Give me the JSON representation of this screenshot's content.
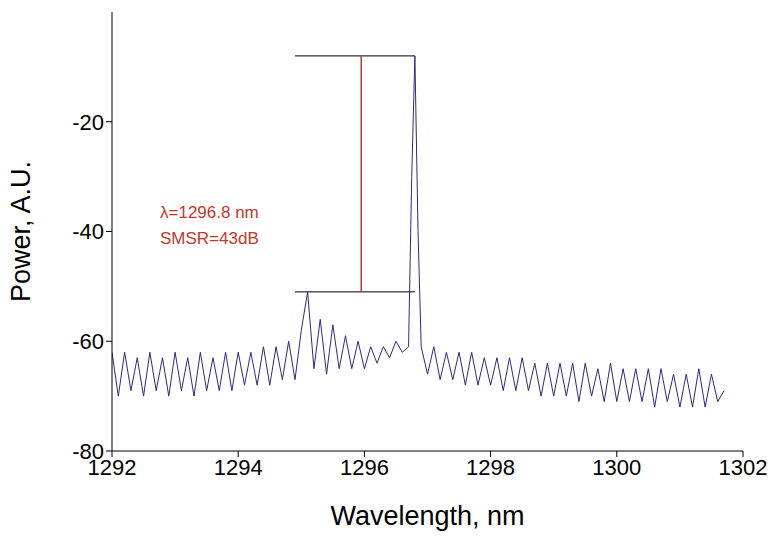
{
  "chart_data": {
    "type": "line",
    "x_label": "Wavelength, nm",
    "y_label": "Power, A.U.",
    "annotations": [
      "λ=1296.8 nm",
      "SMSR=43dB"
    ],
    "x": [
      1292.0,
      1292.1,
      1292.2,
      1292.3,
      1292.4,
      1292.5,
      1292.6,
      1292.7,
      1292.8,
      1292.9,
      1293.0,
      1293.1,
      1293.2,
      1293.3,
      1293.4,
      1293.5,
      1293.6,
      1293.7,
      1293.8,
      1293.9,
      1294.0,
      1294.1,
      1294.2,
      1294.3,
      1294.4,
      1294.5,
      1294.6,
      1294.7,
      1294.8,
      1294.9,
      1295.0,
      1295.1,
      1295.2,
      1295.3,
      1295.4,
      1295.5,
      1295.6,
      1295.7,
      1295.8,
      1295.9,
      1296.0,
      1296.1,
      1296.2,
      1296.3,
      1296.4,
      1296.5,
      1296.6,
      1296.7,
      1296.75,
      1296.8,
      1296.85,
      1296.9,
      1297.0,
      1297.1,
      1297.2,
      1297.3,
      1297.4,
      1297.5,
      1297.6,
      1297.7,
      1297.8,
      1297.9,
      1298.0,
      1298.1,
      1298.2,
      1298.3,
      1298.4,
      1298.5,
      1298.6,
      1298.7,
      1298.8,
      1298.9,
      1299.0,
      1299.1,
      1299.2,
      1299.3,
      1299.4,
      1299.5,
      1299.6,
      1299.7,
      1299.8,
      1299.9,
      1300.0,
      1300.1,
      1300.2,
      1300.3,
      1300.4,
      1300.5,
      1300.6,
      1300.7,
      1300.8,
      1300.9,
      1301.0,
      1301.1,
      1301.2,
      1301.3,
      1301.4,
      1301.5,
      1301.6,
      1301.7
    ],
    "values": [
      -62,
      -70,
      -62,
      -69,
      -63,
      -70,
      -62,
      -69,
      -63,
      -70,
      -62,
      -69,
      -63,
      -70,
      -62,
      -69,
      -63,
      -69,
      -62,
      -69,
      -62,
      -68,
      -62,
      -68,
      -61,
      -68,
      -61,
      -67,
      -60,
      -67,
      -58,
      -51,
      -65,
      -56,
      -66,
      -57,
      -65,
      -59,
      -65,
      -60,
      -65,
      -61,
      -64,
      -61,
      -63,
      -60,
      -62,
      -61,
      -30,
      -8,
      -40,
      -61,
      -66,
      -61,
      -67,
      -62,
      -67,
      -62,
      -68,
      -62,
      -68,
      -63,
      -68,
      -63,
      -69,
      -63,
      -69,
      -63,
      -69,
      -64,
      -70,
      -64,
      -70,
      -64,
      -70,
      -64,
      -71,
      -64,
      -70,
      -65,
      -71,
      -64,
      -71,
      -65,
      -71,
      -65,
      -71,
      -65,
      -72,
      -65,
      -71,
      -66,
      -72,
      -66,
      -72,
      -65,
      -72,
      -66,
      -71,
      -69
    ],
    "color": "#2b2b7a",
    "xlim": [
      1292,
      1302
    ],
    "ylim": [
      -80,
      0
    ],
    "xticks": [
      1292,
      1294,
      1296,
      1298,
      1300,
      1302
    ],
    "yticks": [
      -80,
      -60,
      -40,
      -20
    ],
    "grid": false
  }
}
